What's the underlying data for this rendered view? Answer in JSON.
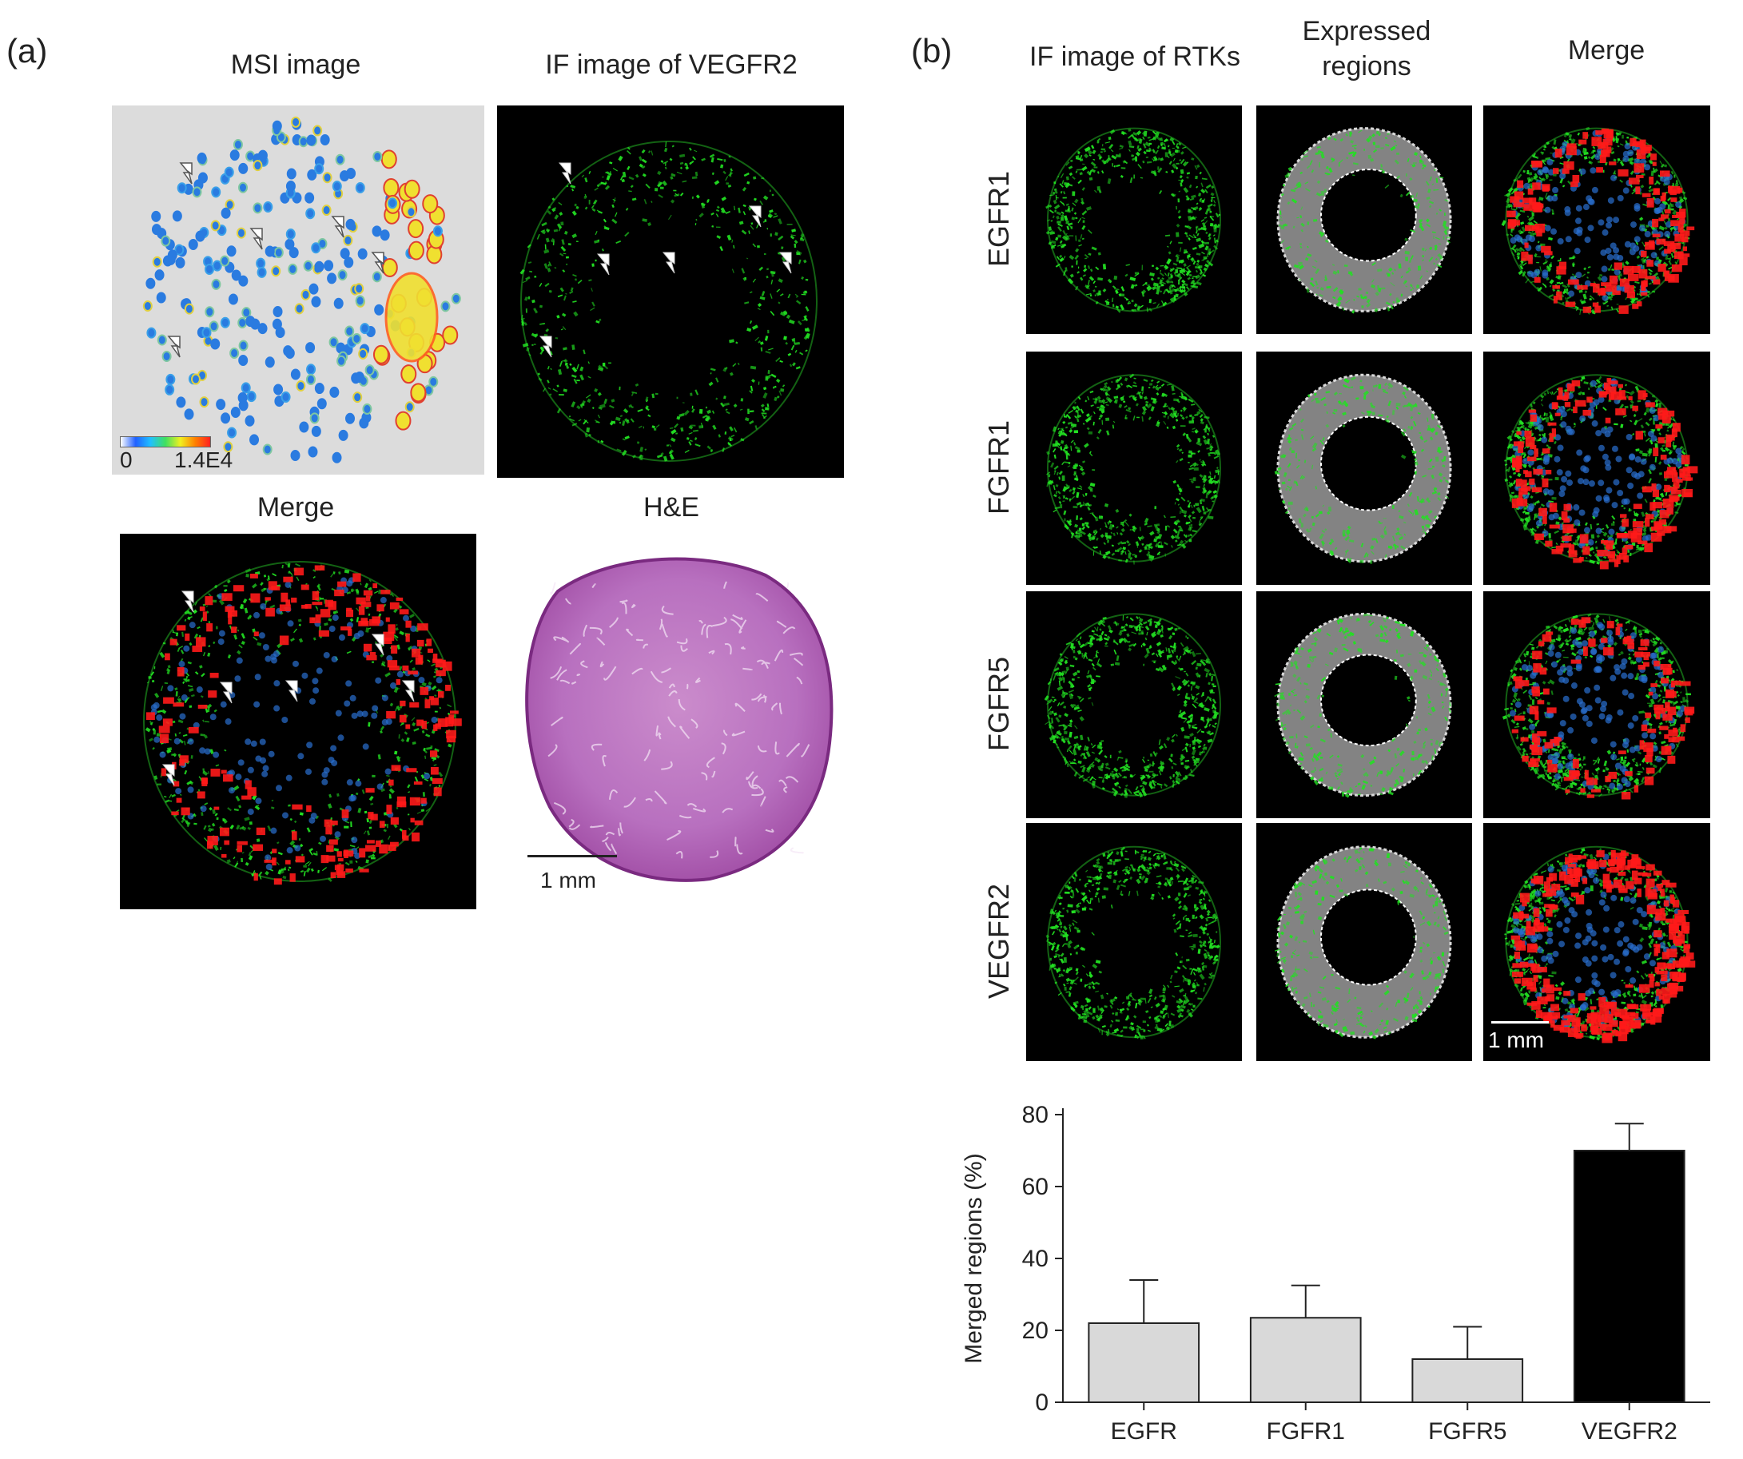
{
  "panel_a": {
    "letter": "(a)",
    "msi_title": "MSI image",
    "if_title": "IF image of VEGFR2",
    "merge_title": "Merge",
    "he_title": "H&E",
    "colorbar_min": "0",
    "colorbar_max": "1.4E4",
    "scale_label": "1 mm"
  },
  "panel_b": {
    "letter": "(b)",
    "col1_title": "IF image of RTKs",
    "col2_title_line1": "Expressed",
    "col2_title_line2": "regions",
    "col3_title": "Merge",
    "rows": [
      "EGFR1",
      "FGFR1",
      "FGFR5",
      "VEGFR2"
    ],
    "scale_label": "1 mm"
  },
  "chart_data": {
    "type": "bar",
    "categories": [
      "EGFR",
      "FGFR1",
      "FGFR5",
      "VEGFR2"
    ],
    "values": [
      22,
      23.5,
      12,
      70
    ],
    "errors": [
      12,
      9,
      9,
      7.5
    ],
    "bar_colors": [
      "#d9d9d9",
      "#d9d9d9",
      "#d9d9d9",
      "#000000"
    ],
    "ylabel": "Merged regions (%)",
    "ylim": [
      0,
      80
    ],
    "yticks": [
      0,
      20,
      40,
      60,
      80
    ],
    "grid": false
  }
}
